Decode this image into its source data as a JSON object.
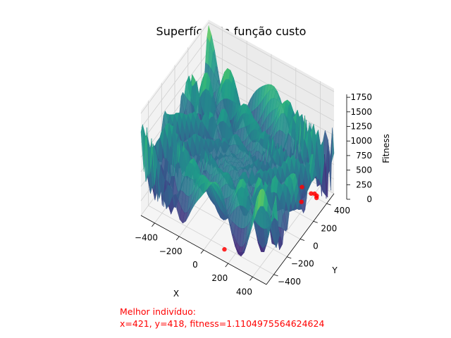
{
  "chart_data": {
    "type": "surface3d",
    "title": "Superfície da função custo",
    "xlabel": "X",
    "ylabel": "Y",
    "zlabel": "Fitness",
    "x_ticks": [
      -400,
      -200,
      0,
      200,
      400
    ],
    "y_ticks": [
      -400,
      -200,
      0,
      200,
      400
    ],
    "z_ticks": [
      0,
      250,
      500,
      750,
      1000,
      1250,
      1500,
      1750
    ],
    "xlim": [
      -512,
      512
    ],
    "ylim": [
      -512,
      512
    ],
    "zlim": [
      0,
      1800
    ],
    "colormap": "viridis",
    "grid": true,
    "points": [
      {
        "x": 421,
        "y": 418,
        "fitness": 1.11
      },
      {
        "x": 400,
        "y": 425,
        "fitness": 2
      },
      {
        "x": 430,
        "y": 400,
        "fitness": 3
      },
      {
        "x": 380,
        "y": 410,
        "fitness": 5
      },
      {
        "x": 360,
        "y": 300,
        "fitness": 6
      },
      {
        "x": 300,
        "y": 420,
        "fitness": 8
      },
      {
        "x": 120,
        "y": -420,
        "fitness": 10
      }
    ],
    "point_color": "#ff0000"
  },
  "annotation": {
    "line1": "Melhor indivíduo:",
    "line2": "x=421, y=418, fitness=1.1104975564624624",
    "color": "#ff0000"
  }
}
